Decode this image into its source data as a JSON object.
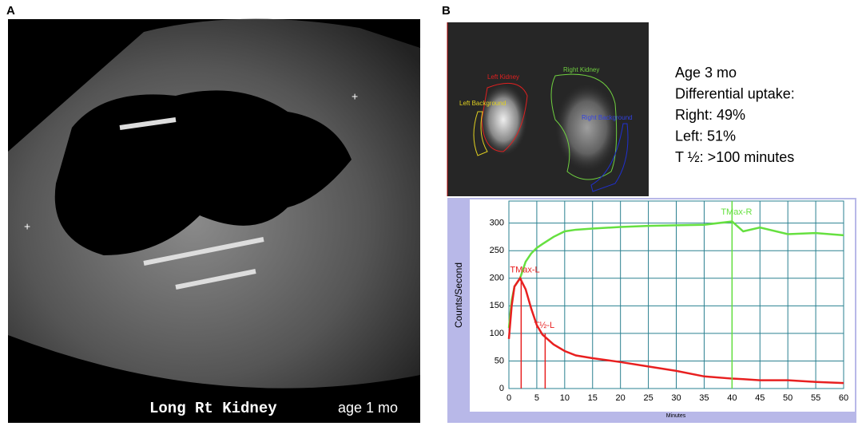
{
  "panels": {
    "a": {
      "label": "A",
      "caption": "Long Rt Kidney",
      "age": "age 1 mo"
    },
    "b": {
      "label": "B",
      "roi_labels": [
        "Left Kidney",
        "Left Background",
        "Right Kidney",
        "Right Background"
      ],
      "info": [
        "Age 3 mo",
        "Differential uptake:",
        "Right: 49%",
        "Left: 51%",
        "T ½: >100 minutes"
      ]
    }
  },
  "chart_data": {
    "type": "line",
    "ylabel": "Counts/Second",
    "xlabel": "Minutes",
    "x": [
      0,
      0.5,
      1,
      2,
      3,
      4,
      5,
      6,
      8,
      10,
      12,
      15,
      20,
      25,
      30,
      35,
      40,
      42,
      45,
      50,
      55,
      60
    ],
    "series": [
      {
        "color": "#66e040",
        "values": [
          110,
          160,
          185,
          200,
          230,
          245,
          255,
          262,
          275,
          285,
          288,
          290,
          293,
          295,
          296,
          297,
          303,
          285,
          292,
          280,
          282,
          278
        ]
      },
      {
        "color": "#e82020",
        "values": [
          90,
          150,
          185,
          200,
          180,
          145,
          115,
          98,
          80,
          68,
          60,
          55,
          48,
          40,
          32,
          22,
          18,
          17,
          15,
          15,
          12,
          10
        ]
      }
    ],
    "markers": [
      {
        "x": 2.2,
        "y": 200,
        "label": "TMax-L",
        "color": "#e82020"
      },
      {
        "x": 6.5,
        "y": 100,
        "label": "T½-L",
        "color": "#e82020"
      },
      {
        "x": 40,
        "y": 340,
        "label": "TMax-R",
        "color": "#66e040"
      }
    ],
    "xlim": [
      0,
      60
    ],
    "ylim": [
      0,
      340
    ],
    "xticks": [
      0,
      5,
      10,
      15,
      20,
      25,
      30,
      35,
      40,
      45,
      50,
      55,
      60
    ],
    "yticks": [
      0,
      50,
      100,
      150,
      200,
      250,
      300
    ],
    "grid": true
  }
}
